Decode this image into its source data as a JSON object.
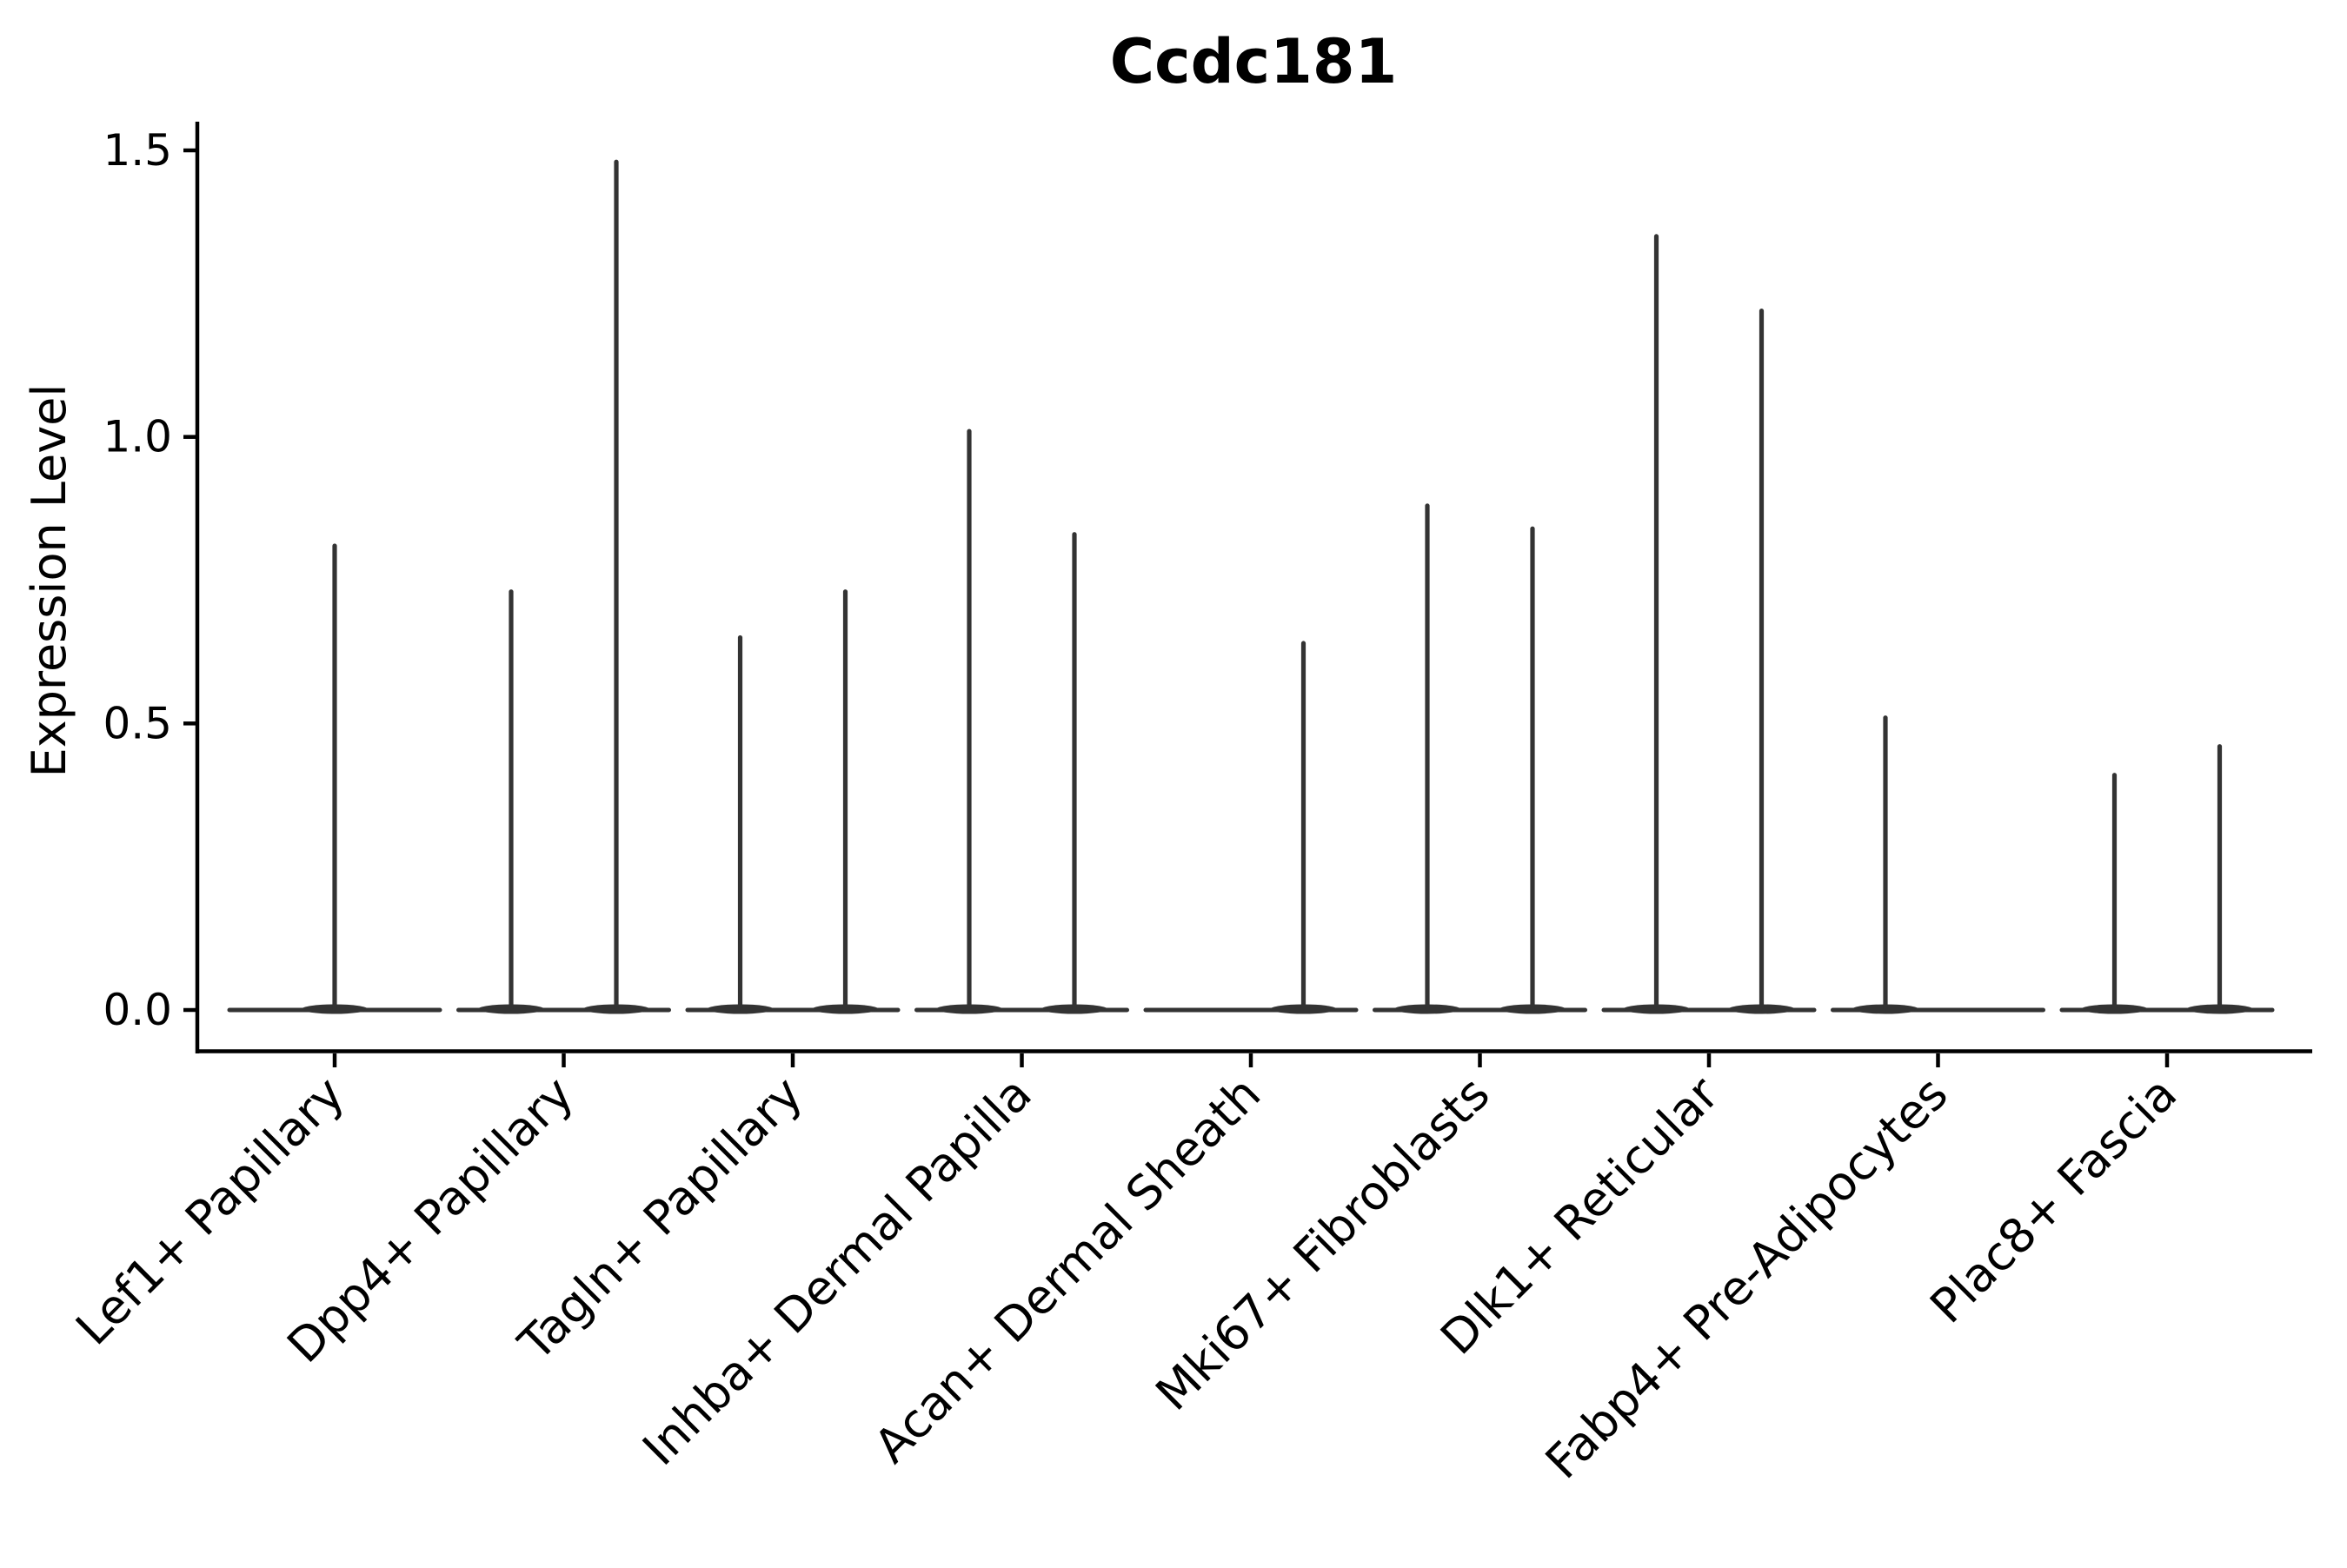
{
  "figure": {
    "title": "Ccdc181",
    "ylabel": "Expression Level",
    "background_color": "#ffffff",
    "axis_color": "#000000",
    "violin_color": "#333333"
  },
  "chart_data": {
    "type": "violin",
    "title": "Ccdc181",
    "xlabel": "",
    "ylabel": "Expression Level",
    "ylim": [
      -0.07,
      1.57
    ],
    "yticks": [
      0.0,
      0.5,
      1.0,
      1.5
    ],
    "ytick_labels": [
      "0.0",
      "0.5",
      "1.0",
      "1.5"
    ],
    "grid": false,
    "legend": "none",
    "style_note": "sparse single-cell expression violins: each violin collapses to a flat line at 0 with a thin spike up to the max expression value; categories with two sub-violins are dodged side by side, a category with one group shows a single centered full-width violin",
    "categories": [
      "Lef1+ Papillary",
      "Dpp4+ Papillary",
      "Tagln+ Papillary",
      "Inhba+ Dermal Papilla",
      "Acan+ Dermal Sheath",
      "Mki67+ Fibroblasts",
      "Dlk1+ Reticular",
      "Fabp4+ Pre-Adipocytes",
      "Plac8+ Fascia"
    ],
    "violins": [
      {
        "category": "Lef1+ Papillary",
        "sub_violins": [
          {
            "offset": 0.0,
            "max_expression": 0.81
          }
        ]
      },
      {
        "category": "Dpp4+ Papillary",
        "sub_violins": [
          {
            "offset": -0.23,
            "max_expression": 0.73
          },
          {
            "offset": 0.23,
            "max_expression": 1.48
          }
        ]
      },
      {
        "category": "Tagln+ Papillary",
        "sub_violins": [
          {
            "offset": -0.23,
            "max_expression": 0.65
          },
          {
            "offset": 0.23,
            "max_expression": 0.73
          }
        ]
      },
      {
        "category": "Inhba+ Dermal Papilla",
        "sub_violins": [
          {
            "offset": -0.23,
            "max_expression": 1.01
          },
          {
            "offset": 0.23,
            "max_expression": 0.83
          }
        ]
      },
      {
        "category": "Acan+ Dermal Sheath",
        "sub_violins": [
          {
            "offset": -0.23,
            "max_expression": 0.0
          },
          {
            "offset": 0.23,
            "max_expression": 0.64
          }
        ]
      },
      {
        "category": "Mki67+ Fibroblasts",
        "sub_violins": [
          {
            "offset": -0.23,
            "max_expression": 0.88
          },
          {
            "offset": 0.23,
            "max_expression": 0.84
          }
        ]
      },
      {
        "category": "Dlk1+ Reticular",
        "sub_violins": [
          {
            "offset": -0.23,
            "max_expression": 1.35
          },
          {
            "offset": 0.23,
            "max_expression": 1.22
          }
        ]
      },
      {
        "category": "Fabp4+ Pre-Adipocytes",
        "sub_violins": [
          {
            "offset": -0.23,
            "max_expression": 0.51
          },
          {
            "offset": 0.23,
            "max_expression": 0.0
          }
        ]
      },
      {
        "category": "Plac8+ Fascia",
        "sub_violins": [
          {
            "offset": -0.23,
            "max_expression": 0.41
          },
          {
            "offset": 0.23,
            "max_expression": 0.46
          }
        ]
      }
    ]
  }
}
